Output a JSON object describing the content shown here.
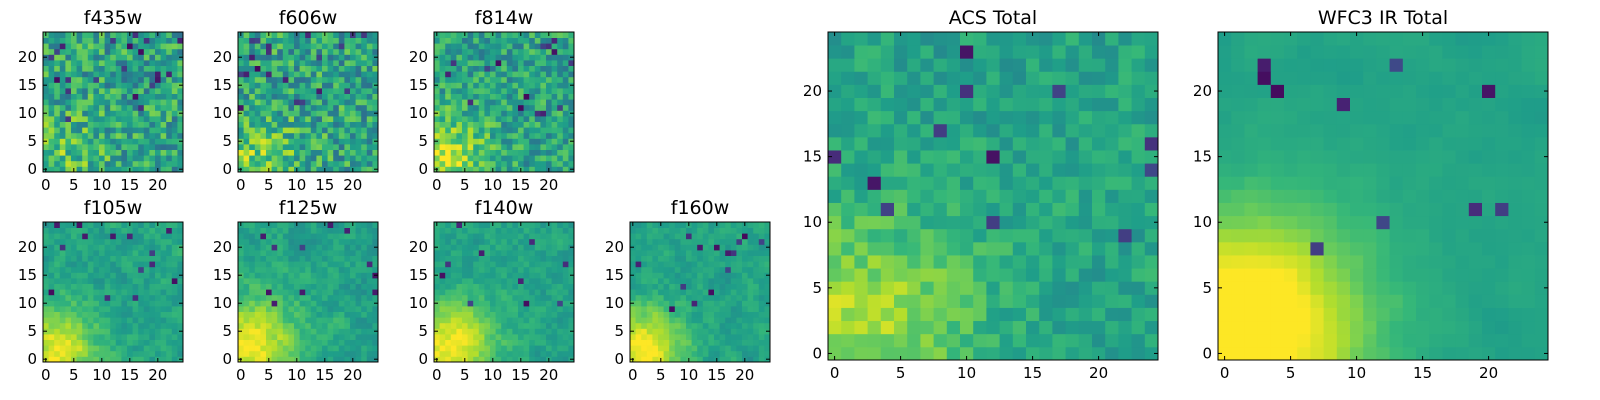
{
  "figure": {
    "background": "#ffffff",
    "colormap": "viridis"
  },
  "chart_data": [
    {
      "type": "heatmap",
      "id": "f435w",
      "title": "f435w",
      "grid_size": 25,
      "xlim": [
        0,
        24
      ],
      "ylim": [
        0,
        24
      ],
      "x_ticks": [
        0,
        5,
        10,
        15,
        20
      ],
      "y_ticks": [
        0,
        5,
        10,
        15,
        20
      ],
      "seed": 11,
      "noise": 0.22,
      "smooth": 0.0,
      "blob_amp": 0.15,
      "blob_width": 6,
      "dark_spots": 22
    },
    {
      "type": "heatmap",
      "id": "f606w",
      "title": "f606w",
      "grid_size": 25,
      "xlim": [
        0,
        24
      ],
      "ylim": [
        0,
        24
      ],
      "x_ticks": [
        0,
        5,
        10,
        15,
        20
      ],
      "y_ticks": [
        0,
        5,
        10,
        15,
        20
      ],
      "seed": 23,
      "noise": 0.22,
      "smooth": 0.0,
      "blob_amp": 0.2,
      "blob_width": 6,
      "dark_spots": 20
    },
    {
      "type": "heatmap",
      "id": "f814w",
      "title": "f814w",
      "grid_size": 25,
      "xlim": [
        0,
        24
      ],
      "ylim": [
        0,
        24
      ],
      "x_ticks": [
        0,
        5,
        10,
        15,
        20
      ],
      "y_ticks": [
        0,
        5,
        10,
        15,
        20
      ],
      "seed": 37,
      "noise": 0.2,
      "smooth": 0.1,
      "blob_amp": 0.32,
      "blob_width": 5,
      "dark_spots": 16
    },
    {
      "type": "heatmap",
      "id": "f105w",
      "title": "f105w",
      "grid_size": 25,
      "xlim": [
        0,
        24
      ],
      "ylim": [
        0,
        24
      ],
      "x_ticks": [
        0,
        5,
        10,
        15,
        20
      ],
      "y_ticks": [
        0,
        5,
        10,
        15,
        20
      ],
      "seed": 41,
      "noise": 0.14,
      "smooth": 0.55,
      "blob_amp": 0.4,
      "blob_width": 5,
      "dark_spots": 14
    },
    {
      "type": "heatmap",
      "id": "f125w",
      "title": "f125w",
      "grid_size": 25,
      "xlim": [
        0,
        24
      ],
      "ylim": [
        0,
        24
      ],
      "x_ticks": [
        0,
        5,
        10,
        15,
        20
      ],
      "y_ticks": [
        0,
        5,
        10,
        15,
        20
      ],
      "seed": 53,
      "noise": 0.14,
      "smooth": 0.55,
      "blob_amp": 0.4,
      "blob_width": 6,
      "dark_spots": 12
    },
    {
      "type": "heatmap",
      "id": "f140w",
      "title": "f140w",
      "grid_size": 25,
      "xlim": [
        0,
        24
      ],
      "ylim": [
        0,
        24
      ],
      "x_ticks": [
        0,
        5,
        10,
        15,
        20
      ],
      "y_ticks": [
        0,
        5,
        10,
        15,
        20
      ],
      "seed": 67,
      "noise": 0.13,
      "smooth": 0.6,
      "blob_amp": 0.42,
      "blob_width": 6,
      "dark_spots": 10
    },
    {
      "type": "heatmap",
      "id": "f160w",
      "title": "f160w",
      "grid_size": 25,
      "xlim": [
        0,
        24
      ],
      "ylim": [
        0,
        24
      ],
      "x_ticks": [
        0,
        5,
        10,
        15,
        20
      ],
      "y_ticks": [
        0,
        5,
        10,
        15,
        20
      ],
      "seed": 79,
      "noise": 0.13,
      "smooth": 0.6,
      "blob_amp": 0.45,
      "blob_width": 5,
      "dark_spots": 14
    },
    {
      "type": "heatmap",
      "id": "acs-total",
      "title": "ACS Total",
      "grid_size": 25,
      "xlim": [
        0,
        24
      ],
      "ylim": [
        0,
        24
      ],
      "x_ticks": [
        0,
        5,
        10,
        15,
        20
      ],
      "y_ticks": [
        0,
        5,
        10,
        15,
        20
      ],
      "seed": 97,
      "noise": 0.13,
      "smooth": 0.3,
      "blob_amp": 0.3,
      "blob_width": 6,
      "dark_spots": 12
    },
    {
      "type": "heatmap",
      "id": "wfc3-ir-total",
      "title": "WFC3 IR Total",
      "grid_size": 25,
      "xlim": [
        0,
        24
      ],
      "ylim": [
        0,
        24
      ],
      "x_ticks": [
        0,
        5,
        10,
        15,
        20
      ],
      "y_ticks": [
        0,
        5,
        10,
        15,
        20
      ],
      "seed": 113,
      "noise": 0.06,
      "smooth": 0.8,
      "blob_amp": 0.55,
      "blob_width": 6,
      "dark_spots": 10
    }
  ]
}
